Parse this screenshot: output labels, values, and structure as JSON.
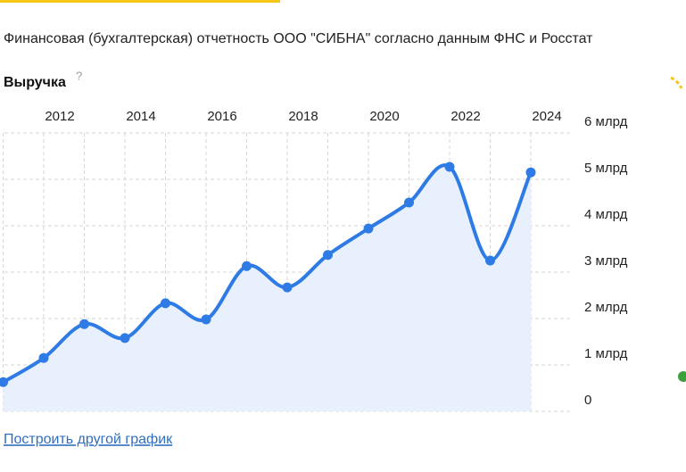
{
  "header": {
    "subtitle": "Финансовая (бухгалтерская) отчетность ООО \"СИБНА\" согласно данным ФНС и Росстат",
    "section": "Выручка",
    "help": "?",
    "link": "Построить другой график"
  },
  "chart_data": {
    "type": "line",
    "color": "#2f7be5",
    "area_color": "#e8f0fd",
    "x": [
      2011,
      2012,
      2013,
      2014,
      2015,
      2016,
      2017,
      2018,
      2019,
      2020,
      2021,
      2022,
      2023,
      2024
    ],
    "values": [
      0.63,
      1.15,
      1.88,
      1.58,
      2.33,
      1.98,
      3.13,
      2.67,
      3.37,
      3.94,
      4.5,
      5.27,
      3.25,
      5.15
    ],
    "xticks": [
      2012,
      2014,
      2016,
      2018,
      2020,
      2022,
      2024
    ],
    "ylim": [
      0,
      6
    ],
    "yticks": [
      0,
      {
        "value": 1,
        "label": "1 млрд"
      },
      {
        "value": 2,
        "label": "2 млрд"
      },
      {
        "value": 3,
        "label": "3 млрд"
      },
      {
        "value": 4,
        "label": "4 млрд"
      },
      {
        "value": 5,
        "label": "5 млрд"
      },
      {
        "value": 6,
        "label": "6 млрд"
      }
    ],
    "grid": true
  }
}
